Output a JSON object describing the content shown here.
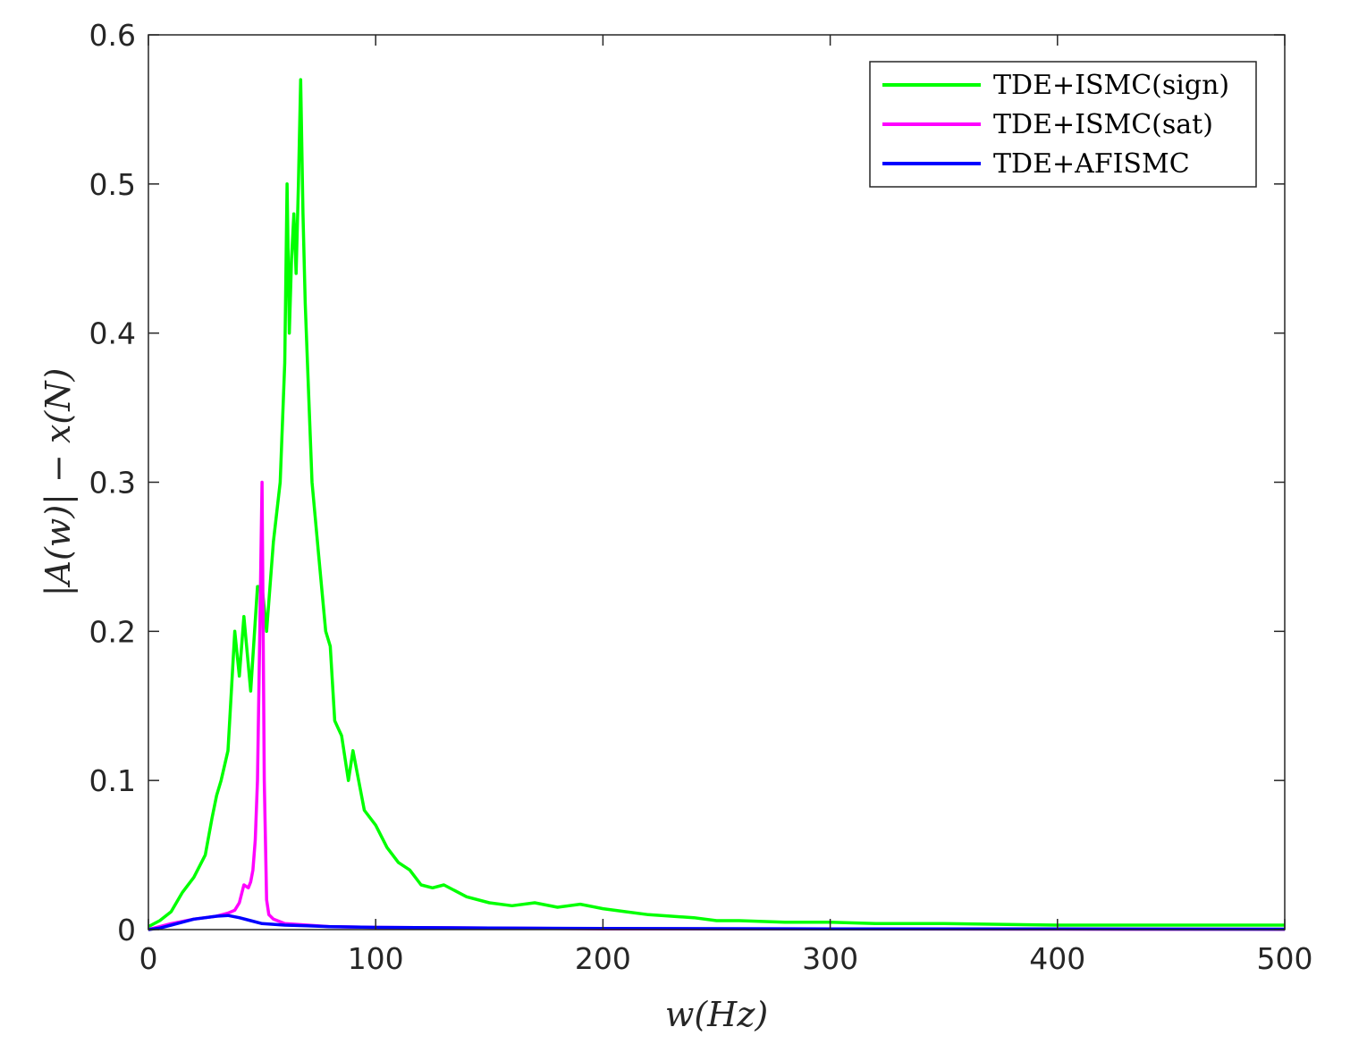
{
  "chart_data": {
    "type": "line",
    "title": "",
    "xlabel": "w(Hz)",
    "ylabel": "|A(w)| − x(N)",
    "xlim": [
      0,
      500
    ],
    "ylim": [
      0,
      0.6
    ],
    "xticks": [
      0,
      100,
      200,
      300,
      400,
      500
    ],
    "xtick_labels": [
      "0",
      "100",
      "200",
      "300",
      "400",
      "500"
    ],
    "yticks": [
      0,
      0.1,
      0.2,
      0.3,
      0.4,
      0.5,
      0.6
    ],
    "ytick_labels": [
      "0",
      "0.1",
      "0.2",
      "0.3",
      "0.4",
      "0.5",
      "0.6"
    ],
    "grid": false,
    "box": true,
    "legend_position": "top-right",
    "series": [
      {
        "name": "TDE+ISMC(sign)",
        "color": "#00ff00",
        "x": [
          0,
          5,
          10,
          15,
          20,
          25,
          28,
          30,
          32,
          35,
          38,
          40,
          42,
          45,
          48,
          50,
          52,
          55,
          58,
          60,
          61,
          62,
          63,
          64,
          65,
          66,
          67,
          68,
          69,
          70,
          72,
          75,
          78,
          80,
          82,
          85,
          88,
          90,
          95,
          100,
          105,
          110,
          115,
          120,
          125,
          130,
          140,
          150,
          160,
          170,
          180,
          190,
          200,
          210,
          220,
          230,
          240,
          250,
          260,
          280,
          300,
          320,
          350,
          400,
          450,
          500
        ],
        "y": [
          0.002,
          0.006,
          0.012,
          0.025,
          0.035,
          0.05,
          0.075,
          0.09,
          0.1,
          0.12,
          0.2,
          0.17,
          0.21,
          0.16,
          0.23,
          0.23,
          0.2,
          0.26,
          0.3,
          0.38,
          0.5,
          0.4,
          0.45,
          0.48,
          0.44,
          0.5,
          0.57,
          0.48,
          0.42,
          0.38,
          0.3,
          0.25,
          0.2,
          0.19,
          0.14,
          0.13,
          0.1,
          0.12,
          0.08,
          0.07,
          0.055,
          0.045,
          0.04,
          0.03,
          0.028,
          0.03,
          0.022,
          0.018,
          0.016,
          0.018,
          0.015,
          0.017,
          0.014,
          0.012,
          0.01,
          0.009,
          0.008,
          0.006,
          0.006,
          0.005,
          0.005,
          0.004,
          0.004,
          0.003,
          0.003,
          0.003
        ]
      },
      {
        "name": "TDE+ISMC(sat)",
        "color": "#ff00ff",
        "x": [
          0,
          10,
          20,
          30,
          35,
          38,
          40,
          42,
          44,
          45,
          46,
          47,
          48,
          49,
          50,
          51,
          52,
          53,
          55,
          60,
          70,
          80,
          100,
          150,
          200,
          300,
          400,
          500
        ],
        "y": [
          0.0,
          0.004,
          0.007,
          0.009,
          0.011,
          0.013,
          0.018,
          0.03,
          0.028,
          0.032,
          0.04,
          0.06,
          0.1,
          0.2,
          0.3,
          0.1,
          0.02,
          0.01,
          0.007,
          0.004,
          0.003,
          0.002,
          0.0015,
          0.001,
          0.0005,
          0.0004,
          0.0003,
          0.0002
        ]
      },
      {
        "name": "TDE+AFISMC",
        "color": "#0000ff",
        "x": [
          0,
          5,
          10,
          15,
          20,
          25,
          30,
          35,
          40,
          45,
          50,
          60,
          70,
          80,
          100,
          150,
          200,
          300,
          400,
          500
        ],
        "y": [
          0.0,
          0.001,
          0.003,
          0.005,
          0.007,
          0.008,
          0.009,
          0.0095,
          0.008,
          0.006,
          0.004,
          0.003,
          0.0025,
          0.002,
          0.0015,
          0.001,
          0.0008,
          0.0005,
          0.0004,
          0.0003
        ]
      }
    ]
  }
}
